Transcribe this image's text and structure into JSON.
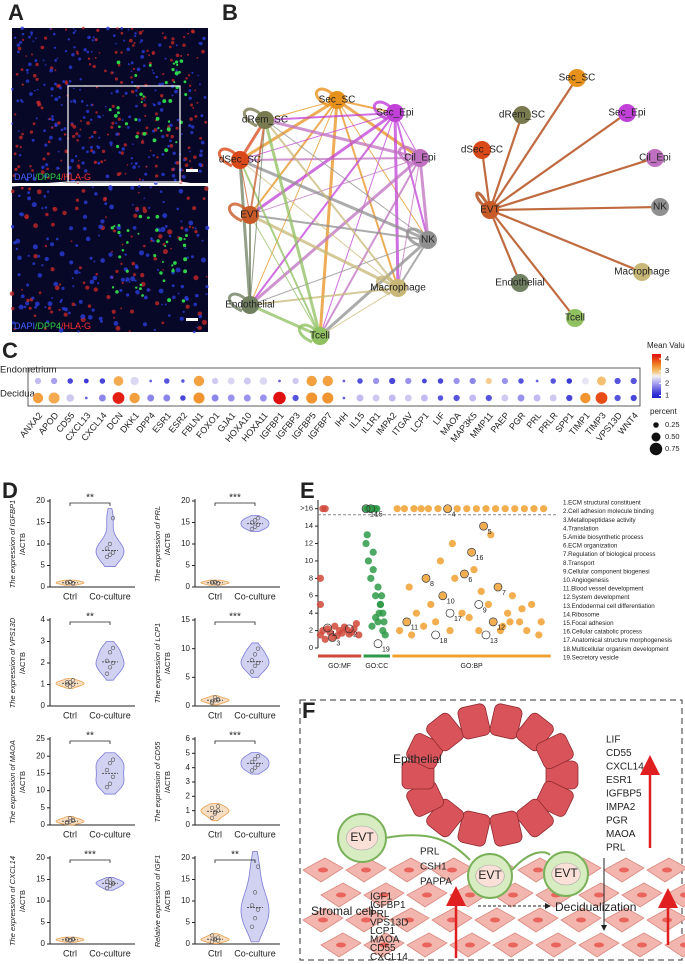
{
  "panels": [
    "A",
    "B",
    "C",
    "D",
    "E",
    "F"
  ],
  "panel_a": {
    "stain": [
      "DAPI",
      "/DPP4",
      "/HLA-G"
    ]
  },
  "panel_b": {
    "nodes": [
      {
        "label": "Sec_SC",
        "color": "#e8921e"
      },
      {
        "label": "Sec_Epi",
        "color": "#c040d8"
      },
      {
        "label": "Cil_Epi",
        "color": "#c070c0"
      },
      {
        "label": "NK",
        "color": "#909090"
      },
      {
        "label": "Macrophage",
        "color": "#c8b878"
      },
      {
        "label": "Tcell",
        "color": "#90c060"
      },
      {
        "label": "Endothelial",
        "color": "#708060"
      },
      {
        "label": "EVT",
        "color": "#c85a28"
      },
      {
        "label": "dSec_SC",
        "color": "#d84818"
      },
      {
        "label": "dRem_SC",
        "color": "#7a7a50"
      }
    ]
  },
  "panel_f": {
    "epithelial": "Epithelial",
    "evt": "EVT",
    "evt_genes": [
      "PRL",
      "CSH1",
      "PAPPA"
    ],
    "stromal_genes": [
      "IGF1",
      "IGFBP1",
      "PRL",
      "VPS13D",
      "LCP1",
      "MAOA",
      "CD55",
      "CXCL14"
    ],
    "epi_genes": [
      "LIF",
      "CD55",
      "CXCL14",
      "ESR1",
      "IGFBP5",
      "IMPA2",
      "PGR",
      "MAOA",
      "PRL"
    ],
    "stromal": "Stromal cell",
    "decidualization": "Decidualization"
  },
  "chart_data": [
    {
      "type": "dot",
      "categories": [
        "ANXA2",
        "APOD",
        "CD55",
        "CXCL13",
        "CXCL14",
        "DCN",
        "DKK1",
        "DPP4",
        "ESR1",
        "ESR2",
        "FBLN1",
        "FOXO1",
        "GJA1",
        "HOXA10",
        "HOXA11",
        "IGFBP1",
        "IGFBP3",
        "IGFBP5",
        "IGFBP7",
        "IHH",
        "IL15",
        "IL1R1",
        "IMPA2",
        "ITGAV",
        "LCP1",
        "LIF",
        "MAOA",
        "MAP3K5",
        "MMP11",
        "PAEP",
        "PGR",
        "PRL",
        "PRLR",
        "SPP1",
        "TIMP1",
        "TIMP3",
        "VPS13D",
        "WNT4"
      ],
      "series": [
        {
          "name": "Endometrium",
          "values": [
            2.2,
            2.0,
            1.3,
            1.2,
            1.3,
            3.2,
            2.4,
            1.5,
            1.4,
            1.4,
            3.3,
            2.3,
            2.4,
            2.3,
            2.4,
            1.5,
            2.3,
            3.3,
            3.3,
            1.5,
            1.4,
            1.9,
            1.3,
            1.9,
            1.3,
            1.3,
            1.9,
            1.8,
            2.9,
            1.9,
            1.4,
            1.5,
            1.4,
            1.2,
            2.5,
            3.0,
            1.4,
            1.4
          ],
          "sizes": [
            0.3,
            0.3,
            0.25,
            0.2,
            0.25,
            0.55,
            0.45,
            0.05,
            0.25,
            0.1,
            0.6,
            0.3,
            0.35,
            0.35,
            0.4,
            0.05,
            0.3,
            0.6,
            0.6,
            0.05,
            0.25,
            0.3,
            0.3,
            0.3,
            0.2,
            0.25,
            0.3,
            0.3,
            0.3,
            0.3,
            0.25,
            0.05,
            0.25,
            0.25,
            0.35,
            0.5,
            0.3,
            0.3
          ]
        },
        {
          "name": "Decidua",
          "values": [
            3.3,
            3.2,
            2.3,
            1.5,
            1.8,
            4.2,
            3.3,
            1.8,
            1.8,
            1.3,
            3.4,
            1.8,
            1.9,
            1.9,
            1.9,
            4.3,
            1.4,
            3.4,
            3.4,
            1.5,
            2.2,
            2.3,
            2.2,
            2.3,
            2.2,
            1.4,
            1.4,
            2.2,
            1.4,
            2.3,
            1.9,
            2.2,
            2.3,
            1.3,
            3.4,
            3.9,
            1.4,
            1.3
          ],
          "sizes": [
            0.6,
            0.65,
            0.4,
            0.05,
            0.35,
            0.7,
            0.6,
            0.35,
            0.35,
            0.25,
            0.65,
            0.35,
            0.35,
            0.35,
            0.35,
            0.75,
            0.3,
            0.65,
            0.65,
            0.05,
            0.35,
            0.35,
            0.35,
            0.35,
            0.35,
            0.25,
            0.3,
            0.35,
            0.3,
            0.35,
            0.35,
            0.35,
            0.35,
            0.3,
            0.6,
            0.7,
            0.3,
            0.3
          ]
        }
      ],
      "color_title": "Mean Value",
      "clim": [
        0.8,
        4.4
      ],
      "color_ticks": [
        1,
        2,
        3,
        4
      ],
      "size_title": "percent",
      "size_ticks": [
        0.25,
        {
          "value": 0.5,
          "label": "0.50"
        },
        0.75
      ]
    },
    {
      "type": "violin",
      "ylabel": [
        "The expression of IGFBP1",
        "/ACTB"
      ],
      "significance": "**",
      "ylim": [
        0,
        20
      ],
      "yticks": [
        0,
        5,
        10,
        15,
        20
      ],
      "series": [
        {
          "name": "Ctrl",
          "color": "#e8a050",
          "values": [
            1.0,
            1.1,
            0.9,
            1.0,
            1.2,
            0.8
          ]
        },
        {
          "name": "Co-culture",
          "color": "#7b7bd8",
          "values": [
            7.0,
            7.5,
            8.0,
            9.0,
            10.0,
            16.0
          ]
        }
      ]
    },
    {
      "type": "violin",
      "ylabel": [
        "The expression of PRL",
        "/ACTB"
      ],
      "significance": "***",
      "ylim": [
        0,
        20
      ],
      "yticks": [
        0,
        5,
        10,
        15,
        20
      ],
      "series": [
        {
          "name": "Ctrl",
          "color": "#e8a050",
          "values": [
            1.0,
            1.2,
            0.9,
            1.1,
            1.0,
            0.8
          ]
        },
        {
          "name": "Co-culture",
          "color": "#7b7bd8",
          "values": [
            13.5,
            14.0,
            14.5,
            15.0,
            15.5,
            16.0
          ]
        }
      ]
    },
    {
      "type": "violin",
      "ylabel": [
        "The expression of VPS13D",
        "/ACTB"
      ],
      "significance": "**",
      "ylim": [
        0,
        4
      ],
      "yticks": [
        0,
        1,
        2,
        3,
        4
      ],
      "series": [
        {
          "name": "Ctrl",
          "color": "#e8a050",
          "values": [
            1.0,
            1.1,
            1.2,
            1.1,
            0.9,
            1.0
          ]
        },
        {
          "name": "Co-culture",
          "color": "#7b7bd8",
          "values": [
            1.5,
            1.8,
            2.0,
            2.1,
            2.5,
            2.7
          ]
        }
      ]
    },
    {
      "type": "violin",
      "ylabel": [
        "The expression of LCP1",
        "/ACTB"
      ],
      "significance": "***",
      "ylim": [
        0,
        15
      ],
      "yticks": [
        0,
        5,
        10,
        15
      ],
      "series": [
        {
          "name": "Ctrl",
          "color": "#e8a050",
          "values": [
            0.5,
            1.0,
            1.2,
            0.8,
            1.5,
            1.0
          ]
        },
        {
          "name": "Co-culture",
          "color": "#7b7bd8",
          "values": [
            6.0,
            7.0,
            7.5,
            8.0,
            9.0,
            10.0
          ]
        }
      ]
    },
    {
      "type": "violin",
      "ylabel": [
        "The expression of MAOA",
        "/ACTB"
      ],
      "significance": "**",
      "ylim": [
        0,
        25
      ],
      "yticks": [
        0,
        5,
        10,
        15,
        20,
        25
      ],
      "series": [
        {
          "name": "Ctrl",
          "color": "#e8a050",
          "values": [
            0.5,
            1.0,
            1.5,
            0.8,
            2.0,
            1.2
          ]
        },
        {
          "name": "Co-culture",
          "color": "#7b7bd8",
          "values": [
            11.0,
            12.0,
            14.0,
            16.0,
            18.0,
            19.0
          ]
        }
      ]
    },
    {
      "type": "violin",
      "ylabel": [
        "The expression of CD55",
        "/ACTB"
      ],
      "significance": "***",
      "ylim": [
        0,
        6
      ],
      "yticks": [
        0,
        1,
        2,
        3,
        4,
        5,
        6
      ],
      "series": [
        {
          "name": "Ctrl",
          "color": "#e8a050",
          "values": [
            0.5,
            0.8,
            1.0,
            1.2,
            0.9,
            1.3
          ]
        },
        {
          "name": "Co-culture",
          "color": "#7b7bd8",
          "values": [
            3.8,
            4.0,
            4.2,
            4.4,
            4.6,
            4.8
          ]
        }
      ]
    },
    {
      "type": "violin",
      "ylabel": [
        "The expression of CXCL14",
        "/ACTB"
      ],
      "significance": "***",
      "ylim": [
        0,
        20
      ],
      "yticks": [
        0,
        5,
        10,
        15,
        20
      ],
      "series": [
        {
          "name": "Ctrl",
          "color": "#e8a050",
          "values": [
            1.0,
            0.8,
            1.2,
            1.1,
            0.9,
            1.0
          ]
        },
        {
          "name": "Co-culture",
          "color": "#7b7bd8",
          "values": [
            13.0,
            13.5,
            14.0,
            14.5,
            15.0,
            14.2
          ]
        }
      ]
    },
    {
      "type": "violin",
      "ylabel": [
        "Relative expression of IGF1",
        "/ACTB"
      ],
      "significance": "**",
      "ylim": [
        0,
        20
      ],
      "yticks": [
        0,
        5,
        10,
        15,
        20
      ],
      "series": [
        {
          "name": "Ctrl",
          "color": "#e8a050",
          "values": [
            0.5,
            1.0,
            1.5,
            2.0,
            1.2,
            0.8
          ]
        },
        {
          "name": "Co-culture",
          "color": "#7b7bd8",
          "values": [
            4.0,
            6.0,
            8.0,
            9.0,
            12.0,
            18.0
          ]
        }
      ]
    },
    {
      "type": "scatter",
      "xlim": [
        0,
        100
      ],
      "ylim": [
        0,
        17
      ],
      "yticks": [
        0,
        2,
        4,
        6,
        8,
        10,
        12,
        14,
        {
          "value": 16,
          "label": ">16"
        }
      ],
      "series": [
        {
          "name": "GO:MF",
          "color": "#d0483a",
          "range": [
            0,
            18
          ],
          "x": [
            1,
            2,
            3,
            4,
            5,
            6,
            7,
            8,
            9,
            10,
            11,
            12,
            13,
            14,
            15,
            16,
            17,
            2,
            3,
            1,
            1
          ],
          "values": [
            1.5,
            2,
            1,
            2.2,
            1.8,
            1.2,
            2.5,
            1.4,
            2,
            1.7,
            2.4,
            2.1,
            1.6,
            1.8,
            2.2,
            2.8,
            1.5,
            16,
            16,
            8,
            5
          ]
        },
        {
          "name": "GO:CC",
          "color": "#2e9a48",
          "range": [
            19,
            30
          ],
          "x": [
            20,
            20.5,
            21,
            21.5,
            22,
            22.5,
            23,
            23.5,
            24,
            24.5,
            25,
            25.5,
            26,
            26.5,
            27,
            27.5,
            28,
            20,
            21,
            22,
            23,
            24,
            25,
            26,
            27,
            22.5,
            24,
            20.5,
            23
          ],
          "values": [
            16,
            16,
            16,
            16,
            16,
            16,
            16,
            16,
            16,
            16,
            3,
            4,
            5,
            6,
            2,
            3,
            1.5,
            12,
            10,
            8,
            9,
            6,
            7,
            5,
            4,
            2.5,
            3.5,
            13,
            11
          ]
        },
        {
          "name": "GO:BP",
          "color": "#f0a030",
          "range": [
            31,
            97
          ],
          "x": [
            33,
            36,
            40,
            43,
            46,
            50,
            54,
            58,
            62,
            66,
            70,
            74,
            78,
            82,
            86,
            90,
            94,
            34,
            37,
            39,
            41,
            44,
            47,
            49,
            52,
            55,
            57,
            60,
            63,
            65,
            67,
            69,
            71,
            73,
            75,
            77,
            79,
            81,
            84,
            87,
            89,
            92,
            38,
            45,
            51,
            56,
            61,
            64,
            68,
            72,
            76,
            80,
            85,
            93
          ],
          "values": [
            16,
            16,
            16,
            16,
            16,
            16,
            16,
            16,
            16,
            16,
            16,
            16,
            16,
            16,
            16,
            16,
            16,
            2,
            3,
            1.5,
            4,
            2.5,
            5,
            3,
            6,
            2,
            8,
            4,
            3.5,
            9,
            2,
            14,
            5,
            3,
            7,
            2.5,
            4,
            6,
            3,
            2,
            5,
            1.5,
            7,
            8,
            10,
            12,
            8.5,
            11,
            6.5,
            13,
            2,
            3,
            4.5,
            3
          ]
        }
      ],
      "annotations": [
        {
          "text": "1",
          "x": 4,
          "y": 2.3
        },
        {
          "text": "2",
          "x": 13,
          "y": 2.2
        },
        {
          "text": "3",
          "x": 6,
          "y": 1.2
        },
        {
          "text": "4",
          "x": 54,
          "y": 16
        },
        {
          "text": "5",
          "x": 69,
          "y": 14
        },
        {
          "text": "6",
          "x": 61,
          "y": 8.5
        },
        {
          "text": "7",
          "x": 75,
          "y": 7
        },
        {
          "text": "8",
          "x": 45,
          "y": 8
        },
        {
          "text": "9",
          "x": 67,
          "y": 5
        },
        {
          "text": "10",
          "x": 52,
          "y": 6
        },
        {
          "text": "11",
          "x": 37,
          "y": 3
        },
        {
          "text": "12",
          "x": 73,
          "y": 3
        },
        {
          "text": "13",
          "x": 70,
          "y": 1.5
        },
        {
          "text": "14",
          "x": 20,
          "y": 16
        },
        {
          "text": "15",
          "x": 22,
          "y": 16
        },
        {
          "text": "16",
          "x": 64,
          "y": 11
        },
        {
          "text": "17",
          "x": 55,
          "y": 4
        },
        {
          "text": "18",
          "x": 49,
          "y": 1.5
        },
        {
          "text": "19",
          "x": 25,
          "y": 0.5
        }
      ],
      "legend": [
        "1.ECM structural constituent",
        "2.Cell adhesion molecule binding",
        "3.Metallopeptidase activity",
        "4.Translation",
        "5.Amide biosynthetic process",
        "6.ECM organization",
        "7.Regulation of biological process",
        "8.Transport",
        "9.Cellular component biogenesi",
        "10.Angiogenesis",
        "11.Blood vessel development",
        "12.System development",
        "13.Endodermal cell differentiation",
        "14.Ribosome",
        "15.Focal adhesion",
        "16.Cellular catabolic process",
        "17.Anatomical structure morphogenesis",
        "18.Multicellular organism development",
        "19.Secretory vesicle"
      ]
    }
  ]
}
